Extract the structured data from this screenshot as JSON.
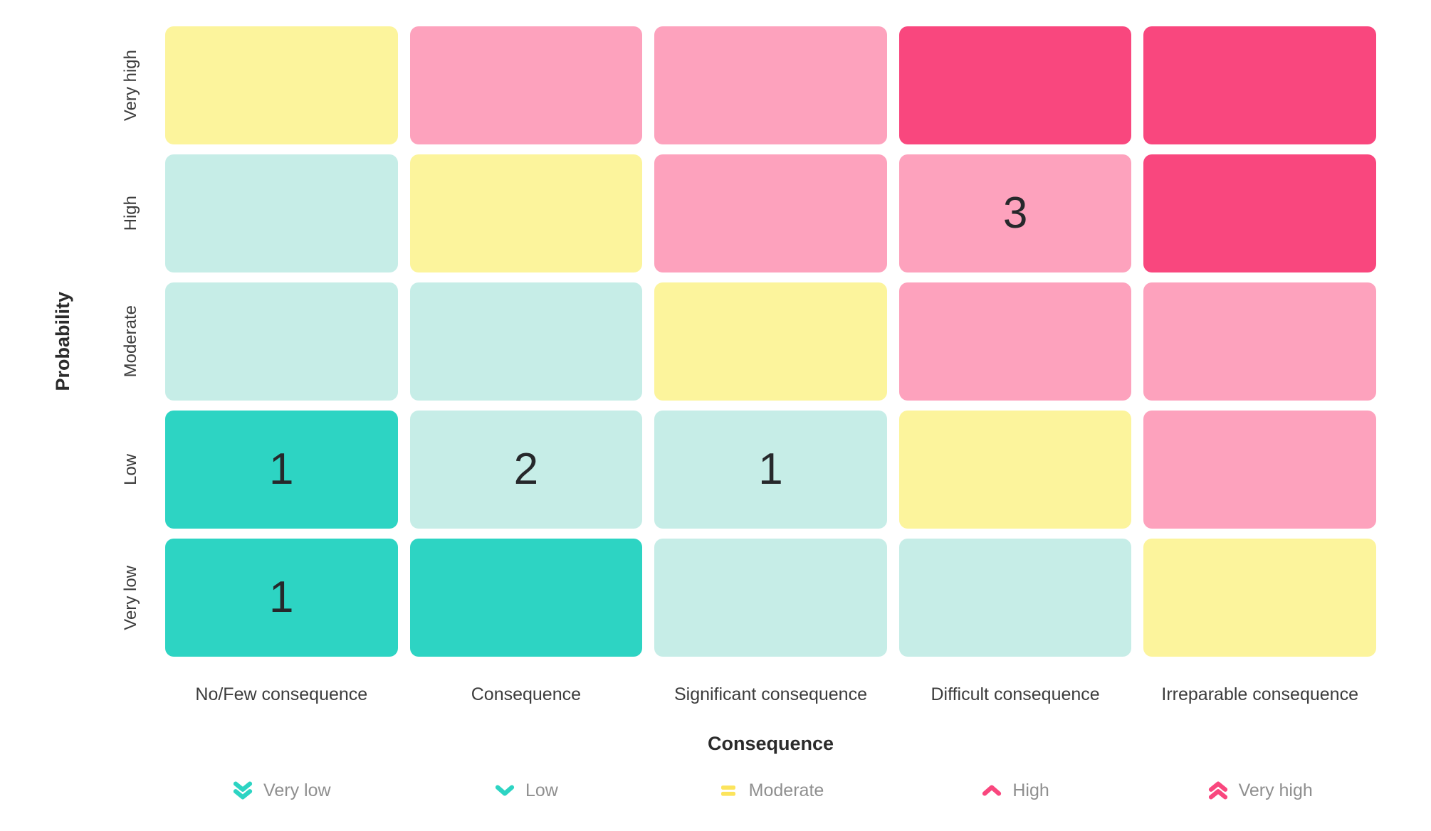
{
  "colors": {
    "very_low": "#2dd4c3",
    "low": "#c6ede7",
    "moderate": "#fcf49c",
    "high": "#fda2bd",
    "very_high": "#f9477e",
    "legend_very_low_icon": "#2dd4c3",
    "legend_low_icon": "#2dd4c3",
    "legend_moderate_icon": "#fce45c",
    "legend_high_icon": "#f9477e",
    "legend_very_high_icon": "#f9477e",
    "cell_number_text": "#26282b",
    "axis_label_text": "#3c3c3c",
    "axis_title_text": "#2b2b2b",
    "legend_text": "#8f8f8f"
  },
  "chart_data": {
    "type": "heatmap",
    "x_axis_label": "Consequence",
    "y_axis_label": "Probability",
    "columns": [
      "No/Few consequence",
      "Consequence",
      "Significant consequence",
      "Difficult consequence",
      "Irreparable consequence"
    ],
    "rows": [
      "Very high",
      "High",
      "Moderate",
      "Low",
      "Very low"
    ],
    "matrix": [
      {
        "label": "Very high",
        "cells": [
          {
            "level": "moderate",
            "count": null
          },
          {
            "level": "high",
            "count": null
          },
          {
            "level": "high",
            "count": null
          },
          {
            "level": "very_high",
            "count": null
          },
          {
            "level": "very_high",
            "count": null
          }
        ]
      },
      {
        "label": "High",
        "cells": [
          {
            "level": "low",
            "count": null
          },
          {
            "level": "moderate",
            "count": null
          },
          {
            "level": "high",
            "count": null
          },
          {
            "level": "high",
            "count": 3
          },
          {
            "level": "very_high",
            "count": null
          }
        ]
      },
      {
        "label": "Moderate",
        "cells": [
          {
            "level": "low",
            "count": null
          },
          {
            "level": "low",
            "count": null
          },
          {
            "level": "moderate",
            "count": null
          },
          {
            "level": "high",
            "count": null
          },
          {
            "level": "high",
            "count": null
          }
        ]
      },
      {
        "label": "Low",
        "cells": [
          {
            "level": "very_low",
            "count": 1
          },
          {
            "level": "low",
            "count": 2
          },
          {
            "level": "low",
            "count": 1
          },
          {
            "level": "moderate",
            "count": null
          },
          {
            "level": "high",
            "count": null
          }
        ]
      },
      {
        "label": "Very low",
        "cells": [
          {
            "level": "very_low",
            "count": 1
          },
          {
            "level": "very_low",
            "count": null
          },
          {
            "level": "low",
            "count": null
          },
          {
            "level": "low",
            "count": null
          },
          {
            "level": "moderate",
            "count": null
          }
        ]
      }
    ],
    "legend": [
      {
        "label": "Very low",
        "icon": "double-chevron-down-icon",
        "color_key": "legend_very_low_icon"
      },
      {
        "label": "Low",
        "icon": "chevron-down-icon",
        "color_key": "legend_low_icon"
      },
      {
        "label": "Moderate",
        "icon": "equals-icon",
        "color_key": "legend_moderate_icon"
      },
      {
        "label": "High",
        "icon": "chevron-up-icon",
        "color_key": "legend_high_icon"
      },
      {
        "label": "Very high",
        "icon": "double-chevron-up-icon",
        "color_key": "legend_very_high_icon"
      }
    ],
    "legend_position": "bottom",
    "grid": "off"
  }
}
